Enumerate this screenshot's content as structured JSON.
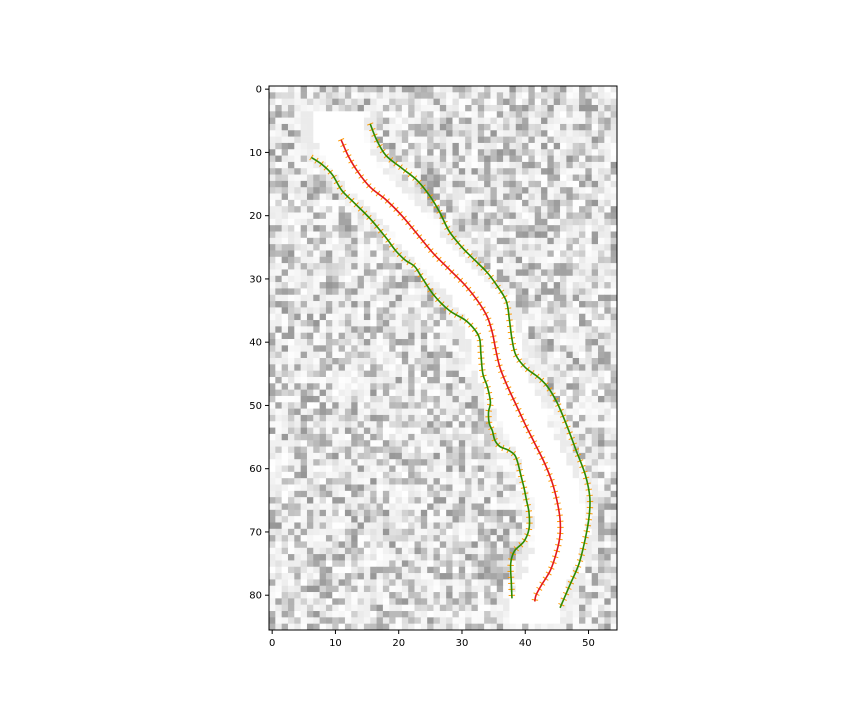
{
  "chart_data": {
    "type": "line",
    "background": "grayscale noise image (white channel along the curves)",
    "xlim": [
      -0.5,
      54.5
    ],
    "ylim": [
      85.5,
      -0.5
    ],
    "y_inverted": true,
    "grid": false,
    "x_ticks": [
      0,
      10,
      20,
      30,
      40,
      50
    ],
    "y_ticks": [
      0,
      10,
      20,
      30,
      40,
      50,
      60,
      70,
      80
    ],
    "colors": {
      "centerline": "#e41a1c",
      "edges": "#2e8b00",
      "hatch": "#ff9900"
    },
    "series": [
      {
        "role": "left-edge",
        "x": [
          6.2,
          8,
          9.5,
          11,
          13,
          15.5,
          18,
          19.5,
          21,
          22.5,
          23.5,
          25.5,
          28,
          30.5,
          32,
          32.8,
          33,
          33.3,
          34,
          34.5,
          34.2,
          34.3,
          34.8,
          35.2,
          36,
          37.2,
          38.3,
          38.8,
          39.3,
          39.8,
          40.2,
          40.6,
          40.6,
          39.8,
          38.3,
          37.7,
          37.8,
          37.9
        ],
        "y": [
          10.8,
          12,
          13.5,
          16,
          18,
          20.5,
          23.5,
          25.5,
          27,
          28,
          29.5,
          32.5,
          35,
          36.5,
          38,
          39.5,
          42,
          45,
          47,
          49.5,
          51,
          52.8,
          54,
          55.5,
          56.5,
          57,
          57.8,
          59,
          61,
          63,
          65,
          67,
          69.5,
          71.5,
          73,
          75,
          78,
          80.5
        ]
      },
      {
        "role": "centerline",
        "x": [
          10.9,
          12,
          13.5,
          15.5,
          18,
          20.5,
          23,
          25.5,
          28,
          30.5,
          32.5,
          34,
          34.8,
          35.3,
          36,
          37.2,
          38.6,
          40,
          41.5,
          43,
          44.2,
          45,
          45.5,
          45.5,
          45,
          44,
          42.5,
          41.7,
          41.5
        ],
        "y": [
          8,
          10.5,
          13,
          15.5,
          17.5,
          20,
          23,
          26,
          28.5,
          31,
          33.5,
          36,
          38.5,
          41,
          44,
          47,
          50,
          53,
          56,
          59,
          62,
          65,
          68,
          70.5,
          73,
          76,
          78.5,
          80,
          81
        ]
      },
      {
        "role": "right-edge",
        "x": [
          15.5,
          16.5,
          18,
          20.5,
          23,
          25,
          26.5,
          28,
          30,
          32,
          34,
          35.5,
          37,
          37.5,
          37.9,
          38.5,
          40,
          42,
          43.5,
          45,
          46.5,
          48,
          49.5,
          50.2,
          50.1,
          49.5,
          48.5,
          47,
          45.5
        ],
        "y": [
          5.5,
          8,
          10.5,
          12.5,
          14.5,
          17,
          19.5,
          22.5,
          25,
          27,
          29,
          31,
          33.5,
          36.5,
          39.5,
          42,
          44,
          45.5,
          47,
          49.5,
          53,
          57,
          61,
          64.5,
          67.5,
          71,
          75,
          78.5,
          82
        ]
      }
    ]
  }
}
